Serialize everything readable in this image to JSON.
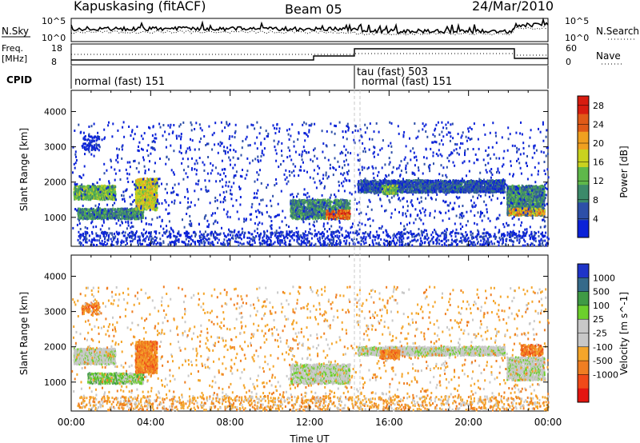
{
  "header": {
    "station": "Kapuskasing (fitACF)",
    "beam": "Beam 05",
    "date": "24/Mar/2010"
  },
  "noise_panel": {
    "left_label": "N.Sky",
    "left_ticks": [
      "10^5",
      "10^0"
    ],
    "right_ticks": [
      "10^5",
      "10^0"
    ],
    "right_label": "N.Search"
  },
  "freq_panel": {
    "left_label_1": "Freq.",
    "left_label_2": "[MHz]",
    "left_ticks": [
      "18",
      "8"
    ],
    "right_ticks": [
      "60",
      "0"
    ],
    "right_label": "Nave"
  },
  "cpid": {
    "label": "CPID",
    "segments": [
      {
        "text": "normal (fast) 151",
        "start_hour": 0.1
      },
      {
        "text": "tau (fast) 503",
        "start_hour": 14.1
      },
      {
        "text": "normal (fast) 151",
        "start_hour": 14.5
      }
    ]
  },
  "colors": {
    "power_scale": [
      "#0b22d8",
      "#2d4fa8",
      "#3c8a6a",
      "#5fb84a",
      "#c9d21e",
      "#f0a020",
      "#e05a18",
      "#d81c10"
    ],
    "velocity_scale": [
      "#1e34c8",
      "#356a8a",
      "#3f9a45",
      "#6ccf2c",
      "#c8c8c8",
      "#c8c8c8",
      "#f4a52a",
      "#ef7e22",
      "#f04a18",
      "#e31510"
    ]
  },
  "chart_data": [
    {
      "type": "heatmap",
      "panel": "power",
      "ylabel": "Slant Range [km]",
      "yticks": [
        1000,
        2000,
        3000,
        4000
      ],
      "ylim": [
        180,
        4600
      ],
      "xlim": [
        0,
        24
      ],
      "colorbar_label": "Power [dB]",
      "colorbar_ticks": [
        4,
        8,
        12,
        16,
        20,
        24,
        28
      ],
      "colorbar_range": [
        0,
        30
      ],
      "scatter_regions": [
        {
          "h0": 0.1,
          "h1": 2.2,
          "r0": 1500,
          "r1": 1900,
          "level": 3,
          "density": 0.85
        },
        {
          "h0": 0.3,
          "h1": 3.6,
          "r0": 950,
          "r1": 1250,
          "level": 2,
          "density": 0.75
        },
        {
          "h0": 3.2,
          "h1": 4.3,
          "r0": 1200,
          "r1": 2100,
          "level": 4,
          "density": 0.8
        },
        {
          "h0": 0.5,
          "h1": 1.4,
          "r0": 2900,
          "r1": 3300,
          "level": 0,
          "density": 0.25
        },
        {
          "h0": 11.0,
          "h1": 14.0,
          "r0": 950,
          "r1": 1500,
          "level": 2,
          "density": 0.7
        },
        {
          "h0": 12.8,
          "h1": 14.0,
          "r0": 950,
          "r1": 1200,
          "level": 6,
          "density": 0.5
        },
        {
          "h0": 14.4,
          "h1": 21.8,
          "r0": 1700,
          "r1": 2050,
          "level": 1,
          "density": 0.8
        },
        {
          "h0": 15.6,
          "h1": 16.4,
          "r0": 1650,
          "r1": 1900,
          "level": 3,
          "density": 0.7
        },
        {
          "h0": 21.9,
          "h1": 23.8,
          "r0": 1050,
          "r1": 1900,
          "level": 2,
          "density": 0.75
        },
        {
          "h0": 22.0,
          "h1": 23.8,
          "r0": 1050,
          "r1": 1250,
          "level": 5,
          "density": 0.5
        },
        {
          "h0": 0.3,
          "h1": 24.0,
          "r0": 200,
          "r1": 600,
          "level": 0,
          "density": 0.18
        },
        {
          "h0": 0.0,
          "h1": 24.0,
          "r0": 600,
          "r1": 3700,
          "level": 0,
          "density": 0.03
        }
      ]
    },
    {
      "type": "heatmap",
      "panel": "velocity",
      "ylabel": "Slant Range [km]",
      "yticks": [
        1000,
        2000,
        3000,
        4000
      ],
      "ylim": [
        180,
        4600
      ],
      "xlim": [
        0,
        24
      ],
      "xlabel": "Time UT",
      "xticks": [
        "00:00",
        "04:00",
        "08:00",
        "12:00",
        "16:00",
        "20:00",
        "00:00"
      ],
      "colorbar_label": "Velocity [m s^-1]",
      "colorbar_ticks": [
        1000,
        500,
        100,
        25,
        -25,
        -100,
        -500,
        -1000
      ],
      "scatter_regions": [
        {
          "h0": 0.1,
          "h1": 2.2,
          "r0": 1500,
          "r1": 1950,
          "level": 4,
          "density": 0.85
        },
        {
          "h0": 0.8,
          "h1": 3.6,
          "r0": 950,
          "r1": 1250,
          "level": 3,
          "density": 0.75
        },
        {
          "h0": 3.2,
          "h1": 4.3,
          "r0": 1250,
          "r1": 2150,
          "level": 7,
          "density": 0.8
        },
        {
          "h0": 0.5,
          "h1": 1.4,
          "r0": 2900,
          "r1": 3250,
          "level": 7,
          "density": 0.3
        },
        {
          "h0": 11.0,
          "h1": 14.0,
          "r0": 950,
          "r1": 1500,
          "level": 4,
          "density": 0.7
        },
        {
          "h0": 14.4,
          "h1": 21.8,
          "r0": 1750,
          "r1": 2000,
          "level": 4,
          "density": 0.8
        },
        {
          "h0": 15.5,
          "h1": 16.5,
          "r0": 1650,
          "r1": 1900,
          "level": 7,
          "density": 0.75
        },
        {
          "h0": 21.9,
          "h1": 23.8,
          "r0": 1050,
          "r1": 1700,
          "level": 4,
          "density": 0.75
        },
        {
          "h0": 22.6,
          "h1": 23.7,
          "r0": 1750,
          "r1": 2050,
          "level": 7,
          "density": 0.6
        },
        {
          "h0": 0.3,
          "h1": 24.0,
          "r0": 200,
          "r1": 600,
          "level": 6,
          "density": 0.18
        },
        {
          "h0": 0.0,
          "h1": 24.0,
          "r0": 600,
          "r1": 3700,
          "level": 6,
          "density": 0.03
        }
      ]
    }
  ]
}
